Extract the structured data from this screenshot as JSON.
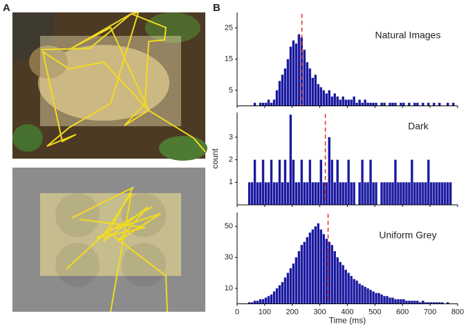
{
  "figure": {
    "panel_a": "A",
    "panel_b": "B"
  },
  "chart_data": [
    {
      "type": "histogram",
      "title": "Natural Images",
      "color": "#1a1aa0",
      "median_color": "#e0302a",
      "median": 235,
      "bins": [
        0,
        10,
        20,
        30,
        40,
        50,
        60,
        70,
        80,
        90,
        100,
        110,
        120,
        130,
        140,
        150,
        160,
        170,
        180,
        190,
        200,
        210,
        220,
        230,
        240,
        250,
        260,
        270,
        280,
        290,
        300,
        310,
        320,
        330,
        340,
        350,
        360,
        370,
        380,
        390,
        400,
        410,
        420,
        430,
        440,
        450,
        460,
        470,
        480,
        490,
        500,
        510,
        520,
        530,
        540,
        550,
        560,
        570,
        580,
        590,
        600,
        610,
        620,
        630,
        640,
        650,
        660,
        670,
        680,
        690,
        700,
        710,
        720,
        730,
        740,
        750,
        760,
        770,
        780,
        790,
        800
      ],
      "values": [
        0,
        0,
        0,
        0,
        0,
        0,
        1,
        0,
        1,
        1,
        1,
        2,
        1,
        2,
        5,
        8,
        10,
        12,
        15,
        19,
        21,
        20,
        23,
        22,
        18,
        14,
        12,
        9,
        10,
        7,
        6,
        5,
        4,
        5,
        3,
        4,
        3,
        2,
        3,
        2,
        2,
        2,
        3,
        1,
        2,
        1,
        2,
        1,
        1,
        1,
        1,
        0,
        1,
        1,
        0,
        1,
        1,
        1,
        0,
        1,
        1,
        0,
        1,
        0,
        1,
        1,
        0,
        1,
        0,
        1,
        0,
        1,
        0,
        1,
        0,
        0,
        1,
        0,
        1,
        0
      ],
      "xlim": [
        0,
        800
      ],
      "ylim": [
        0,
        30
      ],
      "yticks": [
        5,
        15,
        25
      ]
    },
    {
      "type": "histogram",
      "title": "Dark",
      "ylabel": "count",
      "color": "#1a1aa0",
      "median_color": "#e0302a",
      "median": 320,
      "bins": [
        0,
        10,
        20,
        30,
        40,
        50,
        60,
        70,
        80,
        90,
        100,
        110,
        120,
        130,
        140,
        150,
        160,
        170,
        180,
        190,
        200,
        210,
        220,
        230,
        240,
        250,
        260,
        270,
        280,
        290,
        300,
        310,
        320,
        330,
        340,
        350,
        360,
        370,
        380,
        390,
        400,
        410,
        420,
        430,
        440,
        450,
        460,
        470,
        480,
        490,
        500,
        510,
        520,
        530,
        540,
        550,
        560,
        570,
        580,
        590,
        600,
        610,
        620,
        630,
        640,
        650,
        660,
        670,
        680,
        690,
        700,
        710,
        720,
        730,
        740,
        750,
        760,
        770,
        780,
        790,
        800
      ],
      "values": [
        0,
        0,
        0,
        0,
        1,
        1,
        2,
        1,
        1,
        2,
        1,
        1,
        2,
        1,
        1,
        2,
        1,
        2,
        1,
        4,
        2,
        1,
        1,
        2,
        1,
        1,
        2,
        1,
        1,
        1,
        2,
        1,
        1,
        3,
        2,
        1,
        2,
        1,
        1,
        1,
        2,
        1,
        1,
        0,
        1,
        2,
        1,
        1,
        2,
        1,
        1,
        0,
        1,
        1,
        1,
        1,
        1,
        2,
        1,
        1,
        1,
        1,
        1,
        2,
        1,
        1,
        1,
        1,
        1,
        2,
        1,
        1,
        1,
        1,
        1,
        1,
        1,
        1,
        0,
        0
      ],
      "xlim": [
        0,
        800
      ],
      "ylim": [
        0,
        4.1
      ],
      "yticks": [
        1,
        2,
        3
      ]
    },
    {
      "type": "histogram",
      "title": "Uniform Grey",
      "xlabel": "Time (ms)",
      "color": "#1a1aa0",
      "median_color": "#e0302a",
      "median": 330,
      "bins": [
        0,
        10,
        20,
        30,
        40,
        50,
        60,
        70,
        80,
        90,
        100,
        110,
        120,
        130,
        140,
        150,
        160,
        170,
        180,
        190,
        200,
        210,
        220,
        230,
        240,
        250,
        260,
        270,
        280,
        290,
        300,
        310,
        320,
        330,
        340,
        350,
        360,
        370,
        380,
        390,
        400,
        410,
        420,
        430,
        440,
        450,
        460,
        470,
        480,
        490,
        500,
        510,
        520,
        530,
        540,
        550,
        560,
        570,
        580,
        590,
        600,
        610,
        620,
        630,
        640,
        650,
        660,
        670,
        680,
        690,
        700,
        710,
        720,
        730,
        740,
        750,
        760,
        770,
        780,
        790,
        800
      ],
      "values": [
        0,
        0,
        0,
        0,
        1,
        1,
        2,
        2,
        3,
        3,
        4,
        5,
        6,
        8,
        10,
        12,
        14,
        17,
        20,
        23,
        26,
        30,
        34,
        38,
        40,
        43,
        46,
        48,
        50,
        52,
        48,
        45,
        42,
        40,
        38,
        34,
        30,
        27,
        25,
        22,
        20,
        18,
        16,
        15,
        13,
        12,
        11,
        10,
        9,
        8,
        7,
        7,
        6,
        5,
        5,
        4,
        4,
        3,
        3,
        3,
        3,
        2,
        2,
        2,
        2,
        2,
        1,
        2,
        1,
        1,
        1,
        1,
        1,
        1,
        1,
        0,
        1,
        0,
        0,
        0
      ],
      "xlim": [
        0,
        800
      ],
      "ylim": [
        0,
        59
      ],
      "yticks": [
        10,
        30,
        50
      ],
      "xticks": [
        0,
        100,
        200,
        300,
        400,
        500,
        600,
        700,
        800
      ]
    }
  ]
}
